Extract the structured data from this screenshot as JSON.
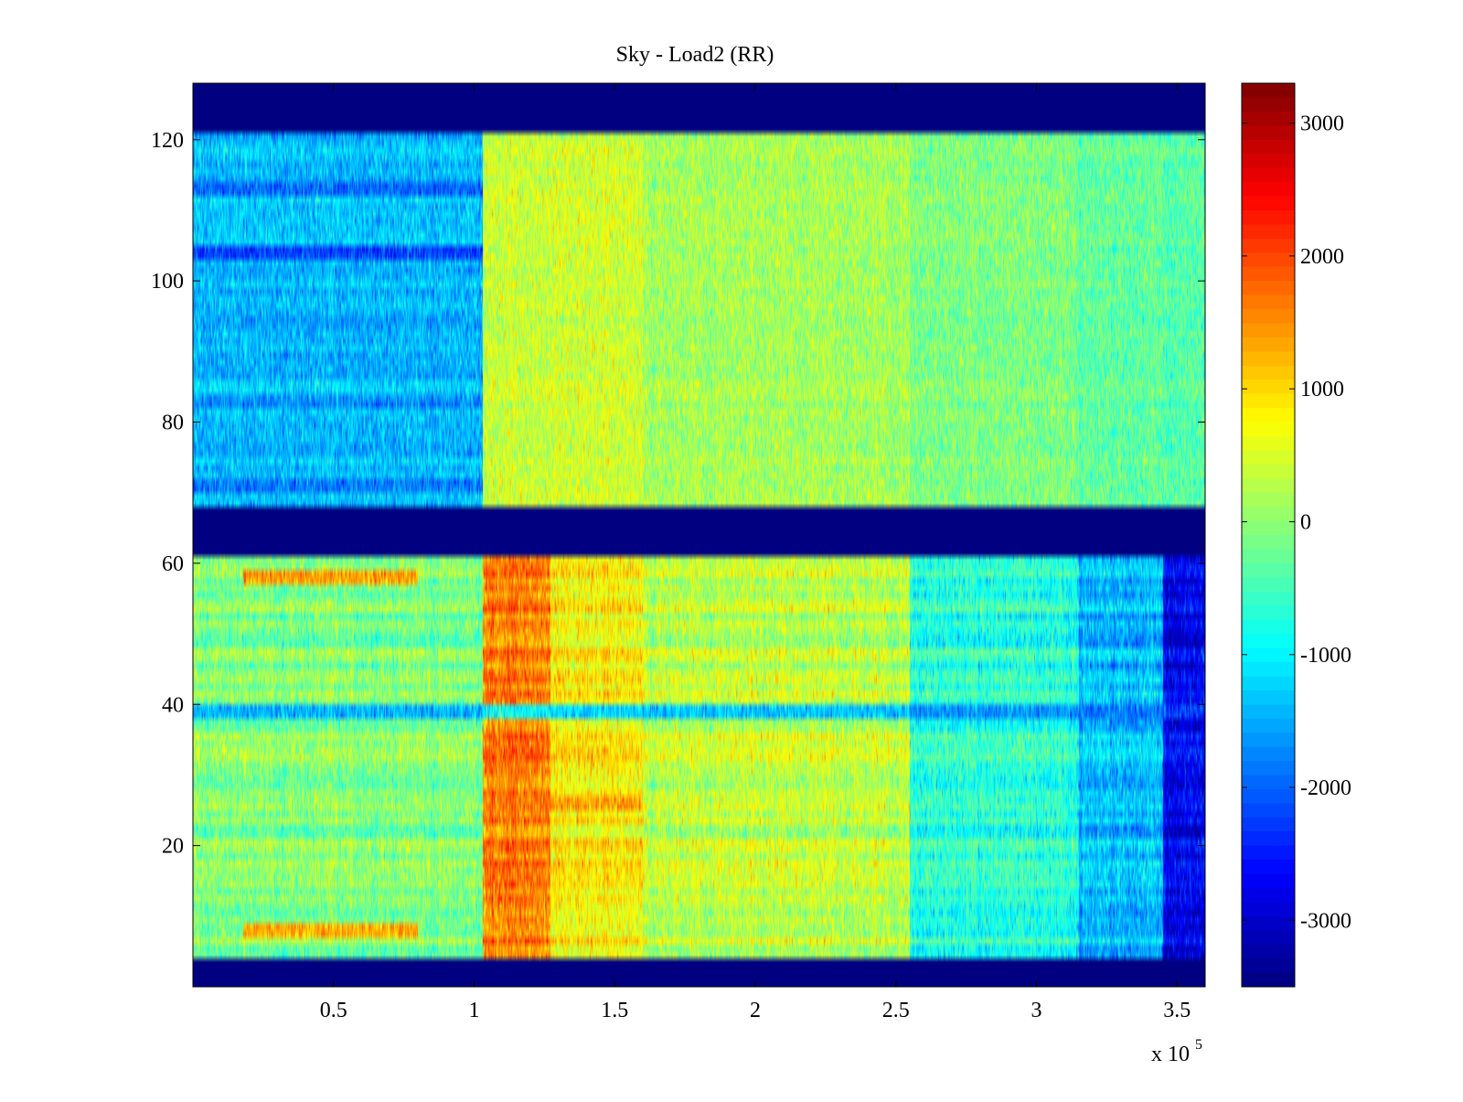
{
  "chart_data": {
    "type": "heatmap",
    "title": "Sky - Load2 (RR)",
    "xlabel": "",
    "ylabel": "",
    "x_multiplier_label": "x 10",
    "x_multiplier_exponent": "5",
    "xlim": [
      0,
      3.6
    ],
    "ylim": [
      0,
      128
    ],
    "xticks": [
      0.5,
      1,
      1.5,
      2,
      2.5,
      3,
      3.5
    ],
    "xtick_labels": [
      "0.5",
      "1",
      "1.5",
      "2",
      "2.5",
      "3",
      "3.5"
    ],
    "yticks": [
      20,
      40,
      60,
      80,
      100,
      120
    ],
    "ytick_labels": [
      "20",
      "40",
      "60",
      "80",
      "100",
      "120"
    ],
    "colormap": "jet",
    "clim": [
      -3500,
      3300
    ],
    "colorbar_ticks": [
      3000,
      2000,
      1000,
      0,
      -1000,
      -2000,
      -3000
    ],
    "colorbar_tick_labels": [
      "3000",
      "2000",
      "1000",
      "0",
      "-1000",
      "-2000",
      "-3000"
    ],
    "masked_rows": [
      [
        0.5,
        3.5
      ],
      [
        61.5,
        67.5
      ],
      [
        121.5,
        128.5
      ]
    ],
    "mask_value": -3500,
    "vertical_segments": [
      {
        "x": [
          0,
          1.03
        ],
        "upper_block_mean": -1400,
        "lower_block_mean": -100
      },
      {
        "x": [
          1.03,
          1.27
        ],
        "upper_block_mean": 400,
        "lower_block_mean": 1600
      },
      {
        "x": [
          1.27,
          1.6
        ],
        "upper_block_mean": 450,
        "lower_block_mean": 800
      },
      {
        "x": [
          1.6,
          2.55
        ],
        "upper_block_mean": 150,
        "lower_block_mean": 300
      },
      {
        "x": [
          2.55,
          3.15
        ],
        "upper_block_mean": -100,
        "lower_block_mean": -700
      },
      {
        "x": [
          3.15,
          3.45
        ],
        "upper_block_mean": -300,
        "lower_block_mean": -1400
      },
      {
        "x": [
          3.45,
          3.6
        ],
        "upper_block_mean": -350,
        "lower_block_mean": -2700
      }
    ],
    "notable_rows": [
      {
        "row": 104,
        "x": [
          0,
          1.03
        ],
        "value": -2600
      },
      {
        "row": 113,
        "x": [
          0,
          1.03
        ],
        "value": -2200
      },
      {
        "row": 71,
        "x": [
          0,
          1.03
        ],
        "value": -2000
      },
      {
        "row": 83,
        "x": [
          0,
          1.03
        ],
        "value": -1800
      },
      {
        "row": 39,
        "x": [
          0,
          3.6
        ],
        "value": -2000
      },
      {
        "row": 58,
        "x": [
          0.18,
          0.8
        ],
        "value": 2000
      },
      {
        "row": 8,
        "x": [
          0.18,
          0.8
        ],
        "value": 2000
      },
      {
        "row": 26,
        "x": [
          1.03,
          1.6
        ],
        "value": 1600
      }
    ]
  }
}
